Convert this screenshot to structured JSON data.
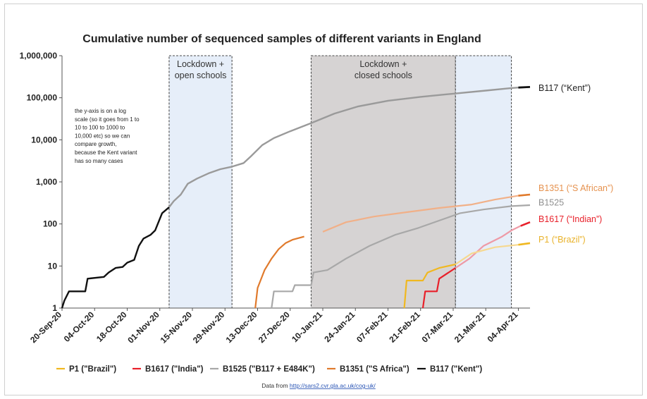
{
  "chart_data": {
    "type": "line",
    "title": "Cumulative number of sequenced samples of different variants in England",
    "y_scale": "log",
    "ylim": [
      1,
      1000000
    ],
    "y_ticks": [
      {
        "value": 1,
        "label": "1"
      },
      {
        "value": 10,
        "label": "10"
      },
      {
        "value": 100,
        "label": "100"
      },
      {
        "value": 1000,
        "label": "1,000"
      },
      {
        "value": 10000,
        "label": "10,000"
      },
      {
        "value": 100000,
        "label": "100,000"
      },
      {
        "value": 1000000,
        "label": "1,000,000"
      }
    ],
    "x_start": "2020-09-20",
    "x_end": "2021-04-09",
    "x_ticks": [
      {
        "date": "2020-09-20",
        "label": "20-Sep-20"
      },
      {
        "date": "2020-10-04",
        "label": "04-Oct-20"
      },
      {
        "date": "2020-10-18",
        "label": "18-Oct-20"
      },
      {
        "date": "2020-11-01",
        "label": "01-Nov-20"
      },
      {
        "date": "2020-11-15",
        "label": "15-Nov-20"
      },
      {
        "date": "2020-11-29",
        "label": "29-Nov-20"
      },
      {
        "date": "2020-12-13",
        "label": "13-Dec-20"
      },
      {
        "date": "2020-12-27",
        "label": "27-Dec-20"
      },
      {
        "date": "2021-01-10",
        "label": "10-Jan-21"
      },
      {
        "date": "2021-01-24",
        "label": "24-Jan-21"
      },
      {
        "date": "2021-02-07",
        "label": "07-Feb-21"
      },
      {
        "date": "2021-02-21",
        "label": "21-Feb-21"
      },
      {
        "date": "2021-03-07",
        "label": "07-Mar-21"
      },
      {
        "date": "2021-03-21",
        "label": "21-Mar-21"
      },
      {
        "date": "2021-04-04",
        "label": "04-Apr-21"
      }
    ],
    "shaded_regions": [
      {
        "start": "2020-11-05",
        "end": "2020-12-02",
        "label_lines": [
          "Lockdown +",
          "open schools"
        ],
        "color": "#e6eef9"
      },
      {
        "start": "2021-01-05",
        "end": "2021-03-08",
        "label_lines": [
          "Lockdown +",
          "closed schools"
        ],
        "color": "#d6d3d3"
      },
      {
        "start": "2021-03-08",
        "end": "2021-04-01",
        "label_lines": [],
        "color": "#e6eef9"
      }
    ],
    "series": [
      {
        "name": "B117 (\"Kent\")",
        "color": "#111111",
        "late_color": "#9a9a9a",
        "color_switch_date": "2020-11-05",
        "points": [
          [
            "2020-09-20",
            1
          ],
          [
            "2020-09-21",
            1.5
          ],
          [
            "2020-09-23",
            2.5
          ],
          [
            "2020-09-30",
            2.5
          ],
          [
            "2020-10-01",
            5
          ],
          [
            "2020-10-08",
            5.5
          ],
          [
            "2020-10-10",
            7
          ],
          [
            "2020-10-13",
            9
          ],
          [
            "2020-10-16",
            9.5
          ],
          [
            "2020-10-18",
            12
          ],
          [
            "2020-10-21",
            14
          ],
          [
            "2020-10-23",
            30
          ],
          [
            "2020-10-25",
            45
          ],
          [
            "2020-10-28",
            55
          ],
          [
            "2020-10-30",
            70
          ],
          [
            "2020-11-02",
            180
          ],
          [
            "2020-11-05",
            250
          ],
          [
            "2020-11-07",
            350
          ],
          [
            "2020-11-10",
            500
          ],
          [
            "2020-11-13",
            900
          ],
          [
            "2020-11-17",
            1200
          ],
          [
            "2020-11-22",
            1600
          ],
          [
            "2020-11-27",
            2000
          ],
          [
            "2020-12-02",
            2300
          ],
          [
            "2020-12-07",
            2800
          ],
          [
            "2020-12-10",
            4000
          ],
          [
            "2020-12-15",
            7500
          ],
          [
            "2020-12-20",
            11000
          ],
          [
            "2020-12-27",
            16000
          ],
          [
            "2021-01-05",
            25000
          ],
          [
            "2021-01-15",
            42000
          ],
          [
            "2021-01-25",
            62000
          ],
          [
            "2021-02-07",
            85000
          ],
          [
            "2021-02-21",
            105000
          ],
          [
            "2021-03-07",
            125000
          ],
          [
            "2021-03-21",
            148000
          ],
          [
            "2021-04-01",
            170000
          ],
          [
            "2021-04-04",
            175000
          ],
          [
            "2021-04-09",
            180000
          ]
        ]
      },
      {
        "name": "B1351 (\"S African\")",
        "color": "#e07a2c",
        "late_color": "#f1b088",
        "color_switch_date": "2021-01-05",
        "points": [
          [
            "2020-12-12",
            1
          ],
          [
            "2020-12-13",
            3
          ],
          [
            "2020-12-16",
            8
          ],
          [
            "2020-12-19",
            15
          ],
          [
            "2020-12-22",
            25
          ],
          [
            "2020-12-25",
            35
          ],
          [
            "2020-12-28",
            42
          ],
          [
            "2021-01-02",
            50
          ],
          [
            "2021-01-10",
            65
          ],
          [
            "2021-01-20",
            110
          ],
          [
            "2021-02-01",
            150
          ],
          [
            "2021-02-15",
            190
          ],
          [
            "2021-03-01",
            240
          ],
          [
            "2021-03-15",
            290
          ],
          [
            "2021-03-25",
            380
          ],
          [
            "2021-04-04",
            470
          ],
          [
            "2021-04-09",
            500
          ]
        ]
      },
      {
        "name": "B1525",
        "color": "#a8a8a8",
        "points": [
          [
            "2020-12-19",
            1
          ],
          [
            "2020-12-20",
            2.5
          ],
          [
            "2020-12-28",
            2.5
          ],
          [
            "2020-12-29",
            3.5
          ],
          [
            "2021-01-05",
            3.5
          ],
          [
            "2021-01-06",
            7
          ],
          [
            "2021-01-12",
            8
          ],
          [
            "2021-01-20",
            15
          ],
          [
            "2021-01-30",
            30
          ],
          [
            "2021-02-10",
            55
          ],
          [
            "2021-02-20",
            80
          ],
          [
            "2021-03-01",
            120
          ],
          [
            "2021-03-10",
            180
          ],
          [
            "2021-03-20",
            220
          ],
          [
            "2021-04-01",
            265
          ],
          [
            "2021-04-09",
            280
          ]
        ]
      },
      {
        "name": "B1617 (\"Indian\")",
        "color": "#e8202a",
        "late_color": "#ee9aa6",
        "color_switch_date": "2021-03-08",
        "points": [
          [
            "2021-02-22",
            1
          ],
          [
            "2021-02-23",
            2.5
          ],
          [
            "2021-02-28",
            2.5
          ],
          [
            "2021-03-01",
            5
          ],
          [
            "2021-03-08",
            9
          ],
          [
            "2021-03-14",
            15
          ],
          [
            "2021-03-20",
            30
          ],
          [
            "2021-03-28",
            50
          ],
          [
            "2021-04-01",
            70
          ],
          [
            "2021-04-05",
            90
          ],
          [
            "2021-04-09",
            110
          ]
        ]
      },
      {
        "name": "P1 (\"Brazil\")",
        "color": "#f0b820",
        "late_color": "#f6d890",
        "color_switch_date": "2021-03-08",
        "points": [
          [
            "2021-02-14",
            1
          ],
          [
            "2021-02-15",
            4.5
          ],
          [
            "2021-02-22",
            4.5
          ],
          [
            "2021-02-24",
            7
          ],
          [
            "2021-03-01",
            9
          ],
          [
            "2021-03-08",
            11
          ],
          [
            "2021-03-15",
            20
          ],
          [
            "2021-03-25",
            28
          ],
          [
            "2021-04-04",
            32
          ],
          [
            "2021-04-09",
            35
          ]
        ]
      }
    ],
    "end_labels": [
      {
        "text": "B117 (“Kent”)",
        "value": 170000,
        "color": "#222222"
      },
      {
        "text": "B1351 (“S African”)",
        "value": 700,
        "color": "#e6924f"
      },
      {
        "text": "B1525",
        "value": 320,
        "color": "#8f8f8f"
      },
      {
        "text": "B1617 (“Indian”)",
        "value": 130,
        "color": "#e8202a"
      },
      {
        "text": "P1 (“Brazil”)",
        "value": 42,
        "color": "#e9b22a"
      }
    ],
    "annotation_lines": [
      "the y-axis is on a log",
      "scale (so it goes from 1 to",
      "10 to 100 to 1000 to",
      "10,000 etc) so we can",
      "compare growth,",
      "because the Kent variant",
      "has so many cases"
    ],
    "legend": [
      {
        "label": "P1 (\"Brazil\")",
        "color": "#f0b820"
      },
      {
        "label": "B1617 (\"India\")",
        "color": "#e8202a"
      },
      {
        "label": "B1525 (\"B117 + E484K\")",
        "color": "#a8a8a8"
      },
      {
        "label": "B1351 (\"S Africa\")",
        "color": "#e07a2c"
      },
      {
        "label": "B117 (\"Kent\")",
        "color": "#111111"
      }
    ],
    "source_prefix": "Data from ",
    "source_link": "http://sars2.cvr.gla.ac.uk/cog-uk/"
  }
}
